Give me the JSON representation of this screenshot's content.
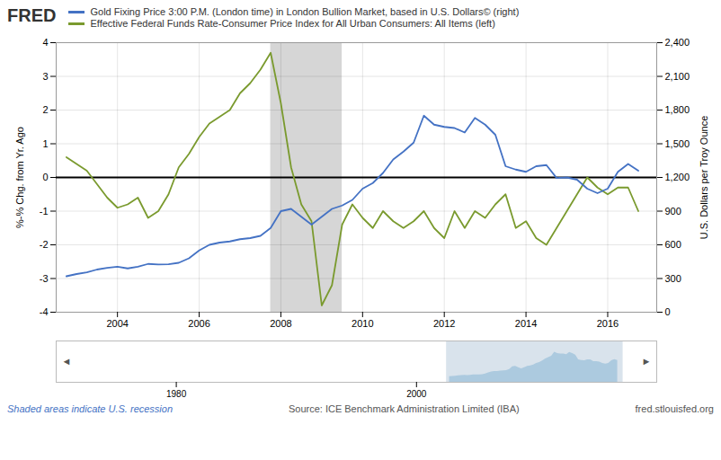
{
  "chart_data": [
    {
      "type": "line",
      "annotations": [
        "FRED",
        "Shaded areas indicate U.S. recession",
        "Source: ICE Benchmark Administration Limited (IBA)",
        "fred.stlouisfed.org"
      ],
      "ylabel": "%-% Chg. from Yr. Ago",
      "y2label": "U.S. Dollars per Troy Ounce",
      "x": [
        2002.75,
        2003.0,
        2003.25,
        2003.5,
        2003.75,
        2004.0,
        2004.25,
        2004.5,
        2004.75,
        2005.0,
        2005.25,
        2005.5,
        2005.75,
        2006.0,
        2006.25,
        2006.5,
        2006.75,
        2007.0,
        2007.25,
        2007.5,
        2007.75,
        2008.0,
        2008.25,
        2008.5,
        2008.75,
        2009.0,
        2009.25,
        2009.5,
        2009.75,
        2010.0,
        2010.25,
        2010.5,
        2010.75,
        2011.0,
        2011.25,
        2011.5,
        2011.75,
        2012.0,
        2012.25,
        2012.5,
        2012.75,
        2013.0,
        2013.25,
        2013.5,
        2013.75,
        2014.0,
        2014.25,
        2014.5,
        2014.75,
        2015.0,
        2015.25,
        2015.5,
        2015.75,
        2016.0,
        2016.25,
        2016.5,
        2016.75
      ],
      "series": [
        {
          "name": "Gold Fixing Price 3:00 P.M. (London time) in London Bullion Market, based in U.S. Dollars© (right)",
          "color": "#4472c4",
          "axis": "y2",
          "values": [
            320,
            340,
            355,
            380,
            395,
            405,
            390,
            405,
            430,
            425,
            427,
            440,
            480,
            550,
            600,
            620,
            630,
            650,
            660,
            680,
            750,
            900,
            920,
            850,
            780,
            850,
            920,
            950,
            1000,
            1100,
            1150,
            1240,
            1360,
            1430,
            1510,
            1750,
            1670,
            1650,
            1640,
            1600,
            1730,
            1670,
            1580,
            1300,
            1270,
            1250,
            1300,
            1310,
            1195,
            1200,
            1180,
            1100,
            1060,
            1100,
            1250,
            1320,
            1260
          ]
        },
        {
          "name": "Effective Federal Funds Rate-Consumer Price Index for All Urban Consumers: All Items (left)",
          "color": "#7a9a2e",
          "values": [
            0.6,
            0.4,
            0.2,
            -0.2,
            -0.6,
            -0.9,
            -0.8,
            -0.6,
            -1.2,
            -1.0,
            -0.5,
            0.3,
            0.7,
            1.2,
            1.6,
            1.8,
            2.0,
            2.5,
            2.8,
            3.2,
            3.7,
            2.2,
            0.3,
            -0.8,
            -1.3,
            -3.8,
            -3.2,
            -1.4,
            -0.8,
            -1.2,
            -1.5,
            -1.0,
            -1.3,
            -1.5,
            -1.3,
            -1.0,
            -1.5,
            -1.8,
            -1.0,
            -1.5,
            -1.0,
            -1.2,
            -0.8,
            -0.5,
            -1.5,
            -1.3,
            -1.8,
            -2.0,
            -1.5,
            -1.0,
            -0.5,
            0.0,
            -0.3,
            -0.5,
            -0.3,
            -0.3,
            -1.0
          ]
        }
      ],
      "xlim": [
        2002.5,
        2017.2
      ],
      "xticks": [
        2004,
        2006,
        2008,
        2010,
        2012,
        2014,
        2016
      ],
      "ylim": [
        -4,
        4
      ],
      "yticks": [
        -4,
        -3,
        -2,
        -1,
        0,
        1,
        2,
        3,
        4
      ],
      "y2lim": [
        0,
        2400
      ],
      "y2ticks": [
        0,
        300,
        600,
        900,
        {
          "value": 1200,
          "label": "1,200"
        },
        {
          "value": 1500,
          "label": "1,500"
        },
        {
          "value": 1800,
          "label": "1,800"
        },
        {
          "value": 2100,
          "label": "2,100"
        },
        {
          "value": 2400,
          "label": "2,400"
        }
      ],
      "recessions": [
        [
          2007.75,
          2009.5
        ]
      ],
      "hlines": [
        0
      ],
      "grid": true,
      "legend": "top-left"
    },
    {
      "type": "area",
      "annotations": [
        "◄",
        "►"
      ],
      "x": [
        2002.75,
        2003.0,
        2003.25,
        2003.5,
        2003.75,
        2004.0,
        2004.25,
        2004.5,
        2004.75,
        2005.0,
        2005.25,
        2005.5,
        2005.75,
        2006.0,
        2006.25,
        2006.5,
        2006.75,
        2007.0,
        2007.25,
        2007.5,
        2007.75,
        2008.0,
        2008.25,
        2008.5,
        2008.75,
        2009.0,
        2009.25,
        2009.5,
        2009.75,
        2010.0,
        2010.25,
        2010.5,
        2010.75,
        2011.0,
        2011.25,
        2011.5,
        2011.75,
        2012.0,
        2012.25,
        2012.5,
        2012.75,
        2013.0,
        2013.25,
        2013.5,
        2013.75,
        2014.0,
        2014.25,
        2014.5,
        2014.75,
        2015.0,
        2015.25,
        2015.5,
        2015.75,
        2016.0,
        2016.25,
        2016.5,
        2016.75
      ],
      "values": [
        320,
        340,
        355,
        380,
        395,
        405,
        390,
        405,
        430,
        425,
        427,
        440,
        480,
        550,
        600,
        620,
        630,
        650,
        660,
        680,
        750,
        900,
        920,
        850,
        780,
        850,
        920,
        950,
        1000,
        1100,
        1150,
        1240,
        1360,
        1430,
        1510,
        1750,
        1670,
        1650,
        1640,
        1600,
        1730,
        1670,
        1580,
        1300,
        1270,
        1250,
        1300,
        1310,
        1195,
        1200,
        1180,
        1100,
        1060,
        1100,
        1250,
        1320,
        1260
      ],
      "color": "#6baed6",
      "xlim": [
        1970,
        2020
      ],
      "xticks": [
        1980,
        2000
      ],
      "ylim": [
        0,
        2400
      ],
      "tick_labels": "x",
      "selection": [
        2002.5,
        2017.2
      ]
    }
  ]
}
